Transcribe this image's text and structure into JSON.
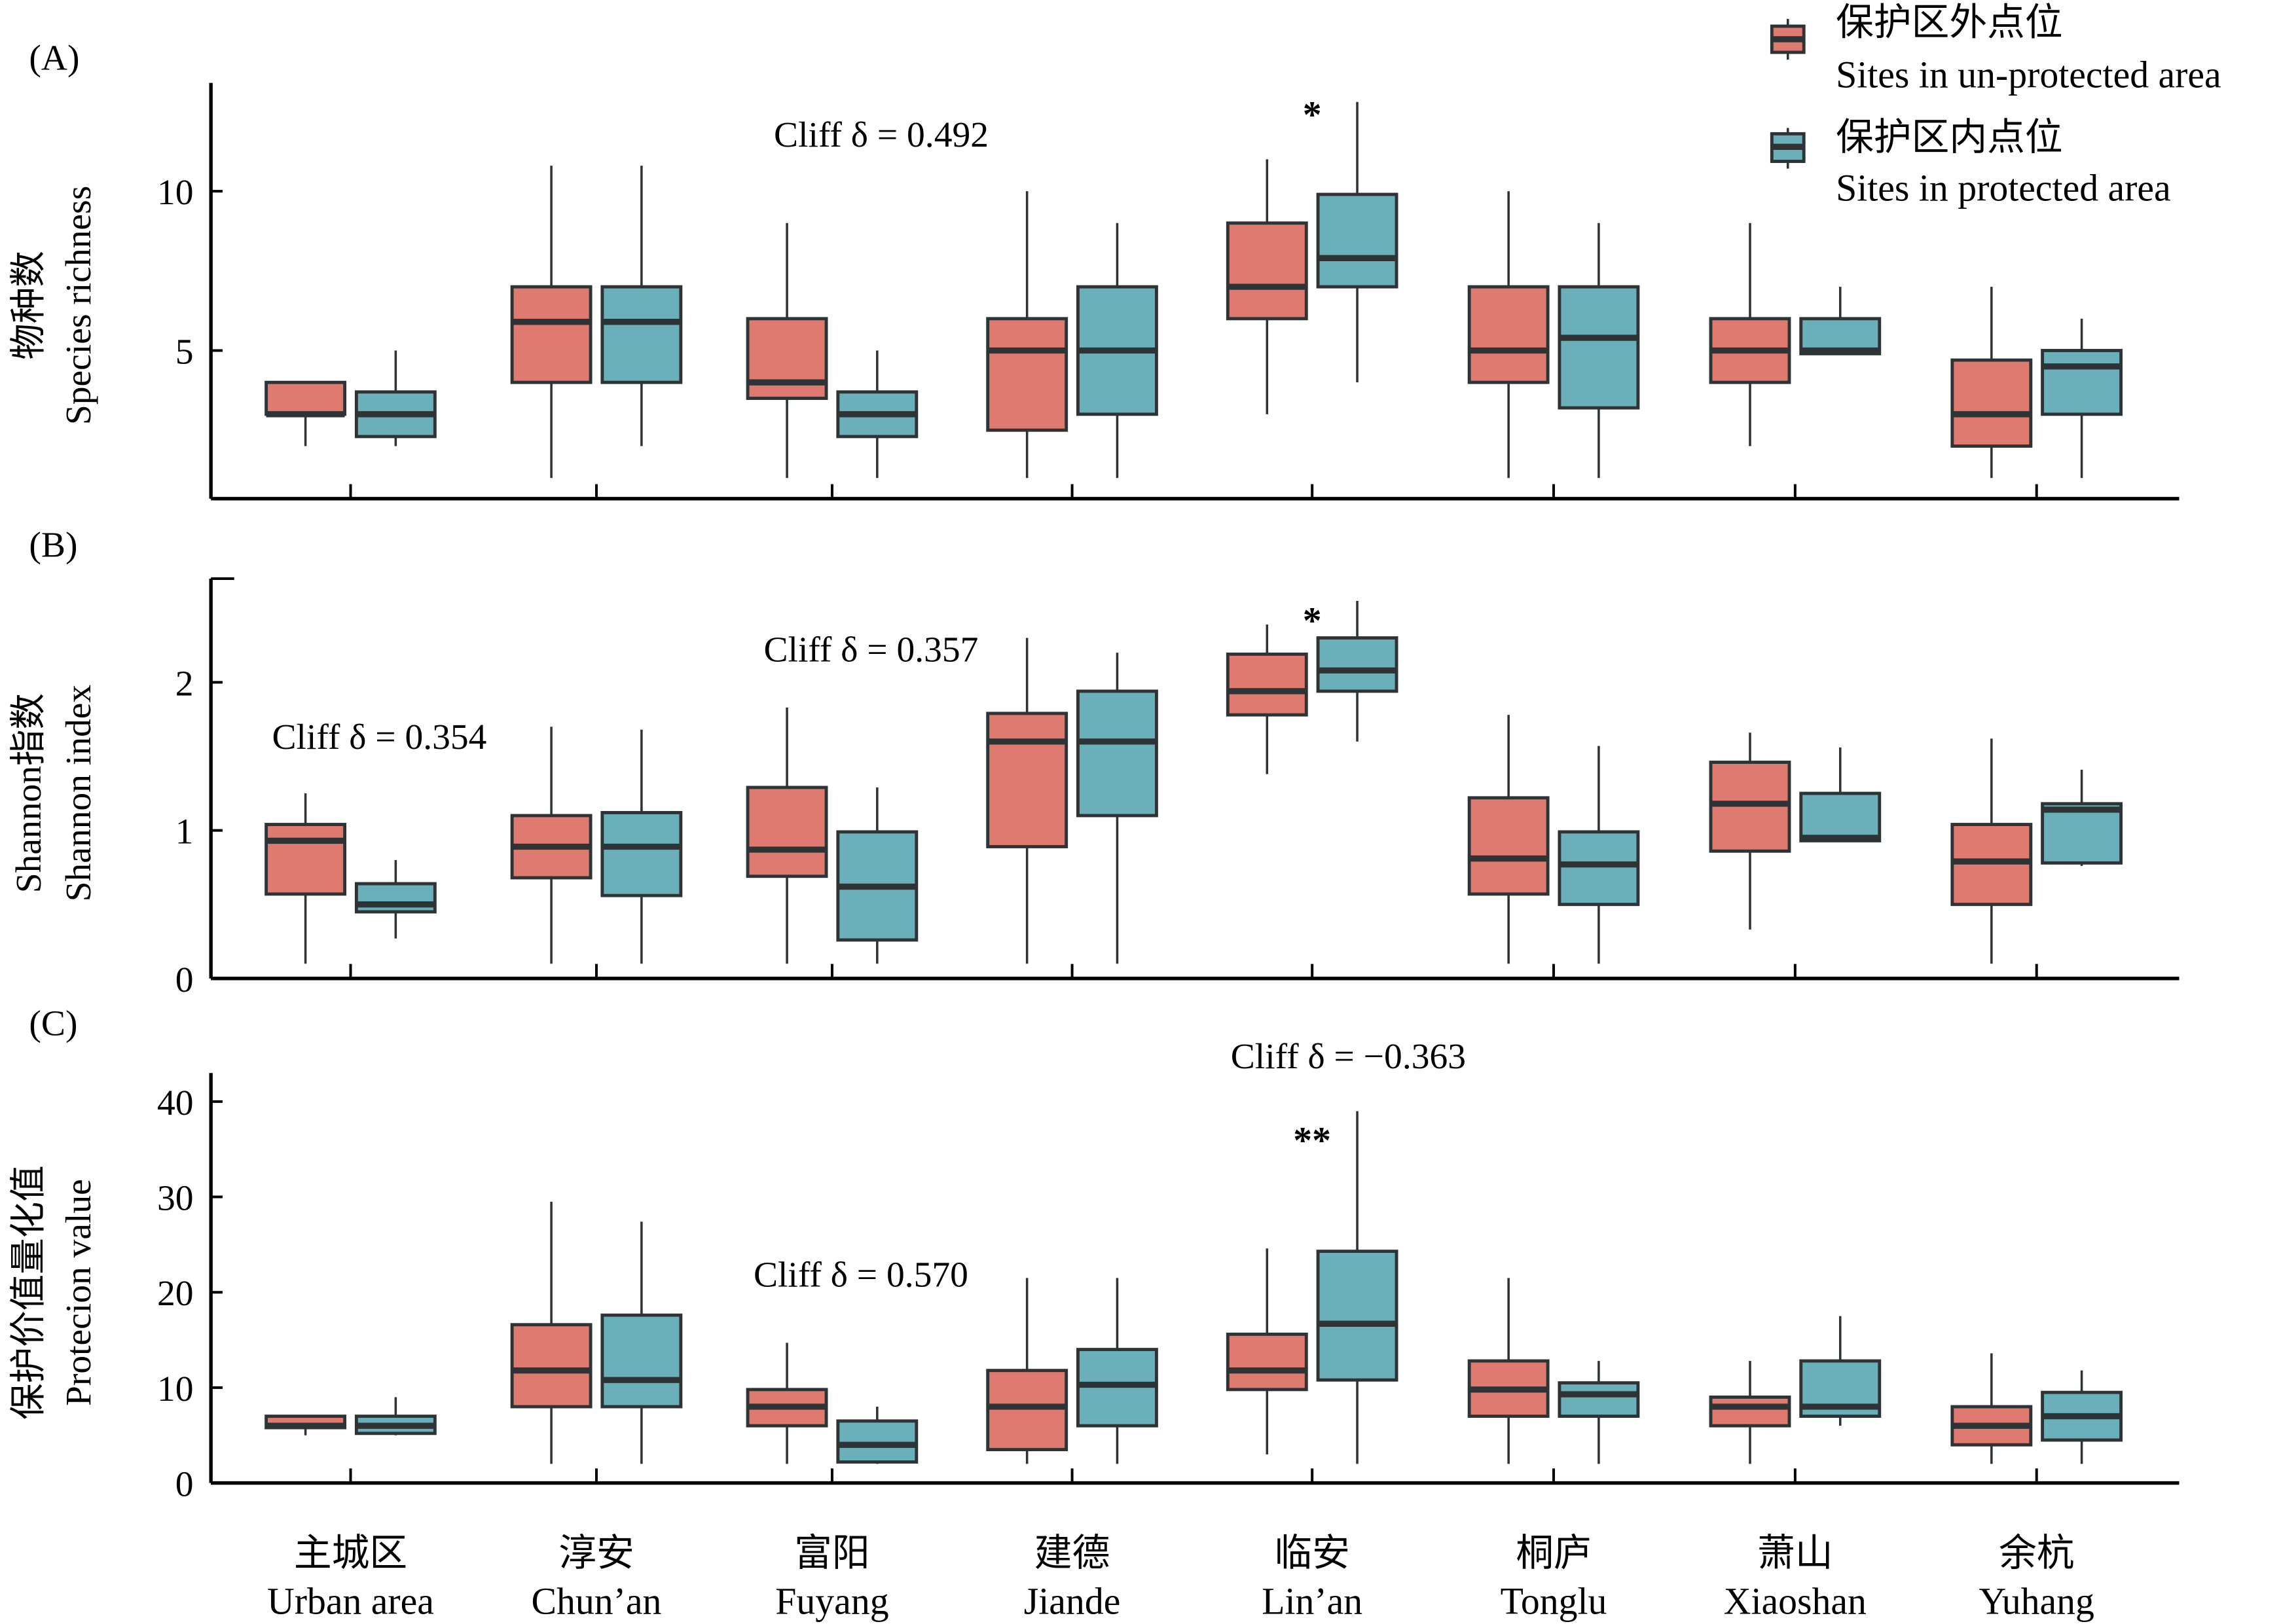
{
  "colors": {
    "unprotected": "#DE7A6F",
    "protected": "#6AAFBA",
    "edge": "#2E3436"
  },
  "legend": {
    "items": [
      {
        "key": "unprotected",
        "label_cn": "保护区外点位",
        "label_en": "Sites in un-protected area"
      },
      {
        "key": "protected",
        "label_cn": "保护区内点位",
        "label_en": "Sites in protected area"
      }
    ],
    "placement": "top-right"
  },
  "chart_data": [
    {
      "type": "box",
      "panel_label": "(A)",
      "ylabel_cn": "物种数",
      "ylabel_en": "Species richness",
      "ylim": [
        0.35,
        13.4
      ],
      "yticks": [
        5,
        10
      ],
      "ytick_labels": [
        "5",
        "10"
      ],
      "categories": [
        "Urban area",
        "Chun'an",
        "Fuyang",
        "Jiande",
        "Lin'an",
        "Tonglu",
        "Xiaoshan",
        "Yuhang"
      ],
      "series": [
        {
          "name": "Sites in un-protected area",
          "key": "unprotected",
          "boxes": [
            {
              "min": 2,
              "q1": 3,
              "median": 3,
              "q3": 4,
              "max": 4
            },
            {
              "min": 1,
              "q1": 4,
              "median": 5.9,
              "q3": 7,
              "max": 10.8
            },
            {
              "min": 1,
              "q1": 3.5,
              "median": 4,
              "q3": 6,
              "max": 9
            },
            {
              "min": 1,
              "q1": 2.5,
              "median": 5,
              "q3": 6,
              "max": 10
            },
            {
              "min": 3,
              "q1": 6,
              "median": 7,
              "q3": 9,
              "max": 11
            },
            {
              "min": 1,
              "q1": 4,
              "median": 5,
              "q3": 7,
              "max": 10
            },
            {
              "min": 2,
              "q1": 4,
              "median": 5,
              "q3": 6,
              "max": 9
            },
            {
              "min": 1,
              "q1": 2,
              "median": 3,
              "q3": 4.7,
              "max": 7
            }
          ]
        },
        {
          "name": "Sites in protected area",
          "key": "protected",
          "boxes": [
            {
              "min": 2,
              "q1": 2.3,
              "median": 3,
              "q3": 3.7,
              "max": 5
            },
            {
              "min": 2,
              "q1": 4,
              "median": 5.9,
              "q3": 7,
              "max": 10.8
            },
            {
              "min": 1,
              "q1": 2.3,
              "median": 3,
              "q3": 3.7,
              "max": 5
            },
            {
              "min": 1,
              "q1": 3,
              "median": 5,
              "q3": 7,
              "max": 9
            },
            {
              "min": 4,
              "q1": 7,
              "median": 7.9,
              "q3": 9.9,
              "max": 12.8
            },
            {
              "min": 1,
              "q1": 3.2,
              "median": 5.4,
              "q3": 7,
              "max": 9
            },
            {
              "min": 5,
              "q1": 4.9,
              "median": 5,
              "q3": 6,
              "max": 7
            },
            {
              "min": 1,
              "q1": 3,
              "median": 4.5,
              "q3": 5,
              "max": 6
            }
          ]
        }
      ],
      "annotations": [
        {
          "text": "Cliff δ = 0.492",
          "x_category": 2,
          "x_offset": 0.3,
          "y": 11.4
        },
        {
          "text": "*",
          "x_category": 4,
          "x_offset": 0,
          "y": 12.0,
          "star": true
        }
      ]
    },
    {
      "type": "box",
      "panel_label": "(B)",
      "ylabel_cn": "Shannon指数",
      "ylabel_en": "Shannon index",
      "ylim": [
        0,
        2.7
      ],
      "yticks": [
        0,
        1,
        2
      ],
      "ytick_labels": [
        "0",
        "1",
        "2"
      ],
      "categories": [
        "Urban area",
        "Chun'an",
        "Fuyang",
        "Jiande",
        "Lin'an",
        "Tonglu",
        "Xiaoshan",
        "Yuhang"
      ],
      "series": [
        {
          "name": "Sites in un-protected area",
          "key": "unprotected",
          "boxes": [
            {
              "min": 0.1,
              "q1": 0.57,
              "median": 0.93,
              "q3": 1.04,
              "max": 1.25
            },
            {
              "min": 0.1,
              "q1": 0.68,
              "median": 0.89,
              "q3": 1.1,
              "max": 1.7
            },
            {
              "min": 0.1,
              "q1": 0.69,
              "median": 0.87,
              "q3": 1.29,
              "max": 1.83
            },
            {
              "min": 0.1,
              "q1": 0.89,
              "median": 1.6,
              "q3": 1.79,
              "max": 2.3
            },
            {
              "min": 1.38,
              "q1": 1.78,
              "median": 1.94,
              "q3": 2.19,
              "max": 2.39
            },
            {
              "min": 0.1,
              "q1": 0.57,
              "median": 0.81,
              "q3": 1.22,
              "max": 1.78
            },
            {
              "min": 0.33,
              "q1": 0.86,
              "median": 1.18,
              "q3": 1.46,
              "max": 1.66
            },
            {
              "min": 0.1,
              "q1": 0.5,
              "median": 0.79,
              "q3": 1.04,
              "max": 1.62
            }
          ]
        },
        {
          "name": "Sites in protected area",
          "key": "protected",
          "boxes": [
            {
              "min": 0.27,
              "q1": 0.45,
              "median": 0.5,
              "q3": 0.64,
              "max": 0.8
            },
            {
              "min": 0.1,
              "q1": 0.56,
              "median": 0.89,
              "q3": 1.12,
              "max": 1.68
            },
            {
              "min": 0.1,
              "q1": 0.26,
              "median": 0.62,
              "q3": 0.99,
              "max": 1.29
            },
            {
              "min": 0.1,
              "q1": 1.1,
              "median": 1.6,
              "q3": 1.94,
              "max": 2.2
            },
            {
              "min": 1.6,
              "q1": 1.94,
              "median": 2.08,
              "q3": 2.3,
              "max": 2.55
            },
            {
              "min": 0.1,
              "q1": 0.5,
              "median": 0.77,
              "q3": 0.99,
              "max": 1.57
            },
            {
              "min": 0.93,
              "q1": 0.93,
              "median": 0.95,
              "q3": 1.25,
              "max": 1.56
            },
            {
              "min": 0.76,
              "q1": 0.78,
              "median": 1.14,
              "q3": 1.18,
              "max": 1.41
            }
          ]
        }
      ],
      "annotations": [
        {
          "text": "Cliff δ = 0.354",
          "x_category": 0,
          "x_offset": 0.2,
          "y": 1.55
        },
        {
          "text": "Cliff δ = 0.357",
          "x_category": 2,
          "x_offset": 0.2,
          "y": 2.14
        },
        {
          "text": "*",
          "x_category": 4,
          "x_offset": 0,
          "y": 2.33,
          "star": true
        }
      ]
    },
    {
      "type": "box",
      "panel_label": "(C)",
      "ylabel_cn": "保护价值量化值",
      "ylabel_en": "Protecion value",
      "ylim": [
        0,
        43
      ],
      "yticks": [
        0,
        10,
        20,
        30,
        40
      ],
      "ytick_labels": [
        "0",
        "10",
        "20",
        "30",
        "40"
      ],
      "categories": [
        "Urban area",
        "Chun'an",
        "Fuyang",
        "Jiande",
        "Lin'an",
        "Tonglu",
        "Xiaoshan",
        "Yuhang"
      ],
      "series": [
        {
          "name": "Sites in un-protected area",
          "key": "unprotected",
          "boxes": [
            {
              "min": 5,
              "q1": 5.8,
              "median": 6,
              "q3": 7,
              "max": 7
            },
            {
              "min": 2,
              "q1": 8,
              "median": 11.8,
              "q3": 16.6,
              "max": 29.5
            },
            {
              "min": 2,
              "q1": 6,
              "median": 8,
              "q3": 9.8,
              "max": 14.7
            },
            {
              "min": 2,
              "q1": 3.5,
              "median": 8,
              "q3": 11.8,
              "max": 21.5
            },
            {
              "min": 3,
              "q1": 9.8,
              "median": 11.8,
              "q3": 15.6,
              "max": 24.6
            },
            {
              "min": 2,
              "q1": 7,
              "median": 9.8,
              "q3": 12.8,
              "max": 21.5
            },
            {
              "min": 2,
              "q1": 6,
              "median": 8,
              "q3": 9,
              "max": 12.8
            },
            {
              "min": 2,
              "q1": 4,
              "median": 6,
              "q3": 8,
              "max": 13.6
            }
          ]
        },
        {
          "name": "Sites in protected area",
          "key": "protected",
          "boxes": [
            {
              "min": 5,
              "q1": 5.2,
              "median": 6,
              "q3": 7,
              "max": 9
            },
            {
              "min": 2,
              "q1": 8,
              "median": 10.8,
              "q3": 17.6,
              "max": 27.4
            },
            {
              "min": 2,
              "q1": 2.2,
              "median": 4,
              "q3": 6.5,
              "max": 8
            },
            {
              "min": 2,
              "q1": 6,
              "median": 10.3,
              "q3": 14,
              "max": 21.5
            },
            {
              "min": 2,
              "q1": 10.8,
              "median": 16.7,
              "q3": 24.3,
              "max": 39
            },
            {
              "min": 2,
              "q1": 7,
              "median": 9.3,
              "q3": 10.5,
              "max": 12.8
            },
            {
              "min": 6,
              "q1": 7,
              "median": 8,
              "q3": 12.8,
              "max": 17.5
            },
            {
              "min": 2,
              "q1": 4.5,
              "median": 7,
              "q3": 9.5,
              "max": 11.8
            }
          ]
        }
      ],
      "annotations": [
        {
          "text": "Cliff δ = 0.570",
          "x_category": 2,
          "x_offset": 0.2,
          "y": 20.6
        },
        {
          "text": "Cliff δ = −0.363",
          "x_category": 4,
          "x_offset": 0.2,
          "y": 43.5
        },
        {
          "text": "**",
          "x_category": 4,
          "x_offset": 0,
          "y": 34.6,
          "star": true
        }
      ]
    }
  ],
  "x_axis": {
    "labels": [
      {
        "cn": "主城区",
        "en": "Urban area"
      },
      {
        "cn": "淳安",
        "en": "Chun’an"
      },
      {
        "cn": "富阳",
        "en": "Fuyang"
      },
      {
        "cn": "建德",
        "en": "Jiande"
      },
      {
        "cn": "临安",
        "en": "Lin’an"
      },
      {
        "cn": "桐庐",
        "en": "Tonglu"
      },
      {
        "cn": "萧山",
        "en": "Xiaoshan"
      },
      {
        "cn": "余杭",
        "en": "Yuhang"
      }
    ]
  }
}
